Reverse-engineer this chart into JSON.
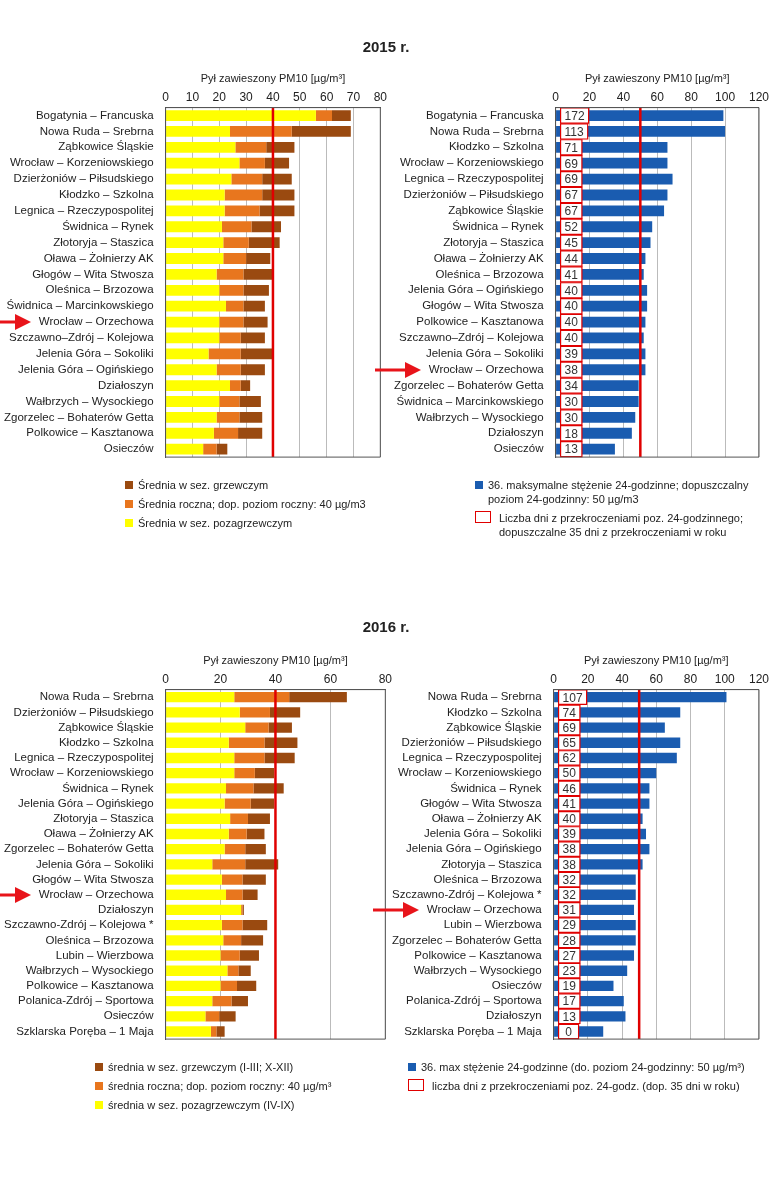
{
  "chart_data": [
    {
      "type": "bar",
      "title": "2015 r.",
      "xlabel": "Pył zawieszony PM10 [µg/m³]",
      "orientation": "horizontal",
      "stacked": true,
      "grid": "x",
      "legend": "bottom",
      "categories": [
        "Bogatynia – Francuska",
        "Nowa Ruda – Srebrna",
        "Ząbkowice Śląskie",
        "Wrocław – Korzeniowskiego",
        "Dzierżoniów – Piłsudskiego",
        "Kłodzko – Szkolna",
        "Legnica – Rzeczypospolitej",
        "Świdnica – Rynek",
        "Złotoryja – Staszica",
        "Oława – Żołnierzy AK",
        "Głogów – Wita Stwosza",
        "Oleśnica – Brzozowa",
        "Świdnica – Marcinkowskiego",
        "Wrocław – Orzechowa",
        "Szczawno–Zdrój – Kolejowa",
        "Jelenia Góra – Sokoliki",
        "Jelenia Góra – Ogińskiego",
        "Działoszyn",
        "Wałbrzych – Wysockiego",
        "Zgorzelec – Bohaterów Getta",
        "Polkowice – Kasztanowa",
        "Osieczów"
      ],
      "series": [
        {
          "name": "Średnia w sez. pozagrzewczym",
          "color": "#ffff00",
          "values": [
            56,
            24,
            26,
            27.5,
            24.5,
            22,
            22,
            21,
            21.5,
            21.5,
            19,
            20,
            22.5,
            20,
            20,
            16,
            19,
            24,
            20,
            19,
            18,
            14
          ]
        },
        {
          "name": "Średnia roczna; dop. poziom roczny: 40 µg/m3",
          "color": "#e8761e",
          "values": [
            6,
            23,
            11.5,
            9.5,
            11.5,
            14,
            13,
            11,
            9.5,
            8.5,
            10,
            9,
            6.5,
            9,
            8,
            12,
            9,
            4,
            7.5,
            8.5,
            9,
            5
          ]
        },
        {
          "name": "Średnia w sez. grzewczym",
          "color": "#9a4a10",
          "values": [
            7,
            22,
            10.5,
            9,
            11,
            12,
            13,
            11,
            11.5,
            9,
            11,
            9.5,
            8,
            9,
            9,
            12,
            9,
            3.5,
            8,
            8.5,
            9,
            4
          ]
        }
      ],
      "xlim": [
        0,
        80
      ],
      "xticks": [
        0,
        10,
        20,
        30,
        40,
        50,
        60,
        70,
        80
      ],
      "ref_lines": [
        {
          "axis": "x",
          "value": 40,
          "color": "#e00000"
        }
      ]
    },
    {
      "type": "bar",
      "xlabel": "Pył zawieszony PM10 [µg/m³]",
      "orientation": "horizontal",
      "grid": "x",
      "legend": "bottom",
      "categories": [
        "Bogatynia – Francuska",
        "Nowa Ruda – Srebrna",
        "Kłodzko – Szkolna",
        "Wrocław – Korzeniowskiego",
        "Legnica – Rzeczypospolitej",
        "Dzierżoniów – Piłsudskiego",
        "Ząbkowice Śląskie",
        "Świdnica – Rynek",
        "Złotoryja – Staszica",
        "Oława – Żołnierzy AK",
        "Oleśnica – Brzozowa",
        "Jelenia Góra – Ogińskiego",
        "Głogów – Wita Stwosza",
        "Polkowice – Kasztanowa",
        "Szczawno–Zdrój – Kolejowa",
        "Jelenia Góra – Sokoliki",
        "Wrocław – Orzechowa",
        "Zgorzelec – Bohaterów Getta",
        "Świdnica – Marcinkowskiego",
        "Wałbrzych – Wysockiego",
        "Działoszyn",
        "Osieczów"
      ],
      "series": [
        {
          "name": "36. maksymalne stężenie 24-godzinne; dopuszczalny poziom 24-godzinny: 50 µg/m3",
          "color": "#1a5cb0",
          "values": [
            99,
            100,
            66,
            66,
            69,
            66,
            64,
            57,
            56,
            53,
            52,
            54,
            54,
            53,
            52,
            53,
            53,
            49,
            49,
            47,
            45,
            35
          ]
        }
      ],
      "xlim": [
        0,
        120
      ],
      "xticks": [
        0,
        20,
        40,
        60,
        80,
        100,
        120
      ],
      "ref_lines": [
        {
          "axis": "x",
          "value": 50,
          "color": "#e00000"
        }
      ],
      "annotations": [
        {
          "text": "172",
          "y": "Bogatynia – Francuska"
        },
        {
          "text": "113",
          "y": "Nowa Ruda – Srebrna"
        },
        {
          "text": "71",
          "y": "Kłodzko – Szkolna"
        },
        {
          "text": "69",
          "y": "Wrocław – Korzeniowskiego"
        },
        {
          "text": "69",
          "y": "Legnica – Rzeczypospolitej"
        },
        {
          "text": "67",
          "y": "Dzierżoniów – Piłsudskiego"
        },
        {
          "text": "67",
          "y": "Ząbkowice Śląskie"
        },
        {
          "text": "52",
          "y": "Świdnica – Rynek"
        },
        {
          "text": "45",
          "y": "Złotoryja – Staszica"
        },
        {
          "text": "44",
          "y": "Oława – Żołnierzy AK"
        },
        {
          "text": "41",
          "y": "Oleśnica – Brzozowa"
        },
        {
          "text": "40",
          "y": "Jelenia Góra – Ogińskiego"
        },
        {
          "text": "40",
          "y": "Głogów – Wita Stwosza"
        },
        {
          "text": "40",
          "y": "Polkowice – Kasztanowa"
        },
        {
          "text": "40",
          "y": "Szczawno–Zdrój – Kolejowa"
        },
        {
          "text": "39",
          "y": "Jelenia Góra – Sokoliki"
        },
        {
          "text": "38",
          "y": "Wrocław – Orzechowa"
        },
        {
          "text": "34",
          "y": "Zgorzelec – Bohaterów Getta"
        },
        {
          "text": "30",
          "y": "Świdnica – Marcinkowskiego"
        },
        {
          "text": "30",
          "y": "Wałbrzych – Wysockiego"
        },
        {
          "text": "18",
          "y": "Działoszyn"
        },
        {
          "text": "13",
          "y": "Osieczów"
        },
        "Liczba dni z przekroczeniami poz. 24-godzinnego; dopuszczalne 35 dni z przekroczeniami w roku"
      ]
    },
    {
      "type": "bar",
      "title": "2016 r.",
      "xlabel": "Pył zawieszony PM10 [µg/m³]",
      "orientation": "horizontal",
      "stacked": true,
      "grid": "x",
      "legend": "bottom",
      "categories": [
        "Nowa Ruda – Srebrna",
        "Dzierżoniów – Piłsudskiego",
        "Ząbkowice Śląskie",
        "Kłodzko – Szkolna",
        "Legnica – Rzeczypospolitej",
        "Wrocław – Korzeniowskiego",
        "Świdnica – Rynek",
        "Jelenia Góra – Ogińskiego",
        "Złotoryja – Staszica",
        "Oława – Żołnierzy AK",
        "Zgorzelec – Bohaterów Getta",
        "Jelenia Góra – Sokoliki",
        "Głogów – Wita Stwosza",
        "Wrocław – Orzechowa",
        "Działoszyn",
        "Szczawno-Zdrój – Kolejowa *",
        "Oleśnica – Brzozowa",
        "Lubin – Wierzbowa",
        "Wałbrzych – Wysockiego",
        "Polkowice – Kasztanowa",
        "Polanica-Zdrój – Sportowa",
        "Osieczów",
        "Szklarska Poręba – 1 Maja"
      ],
      "series": [
        {
          "name": "średnia w sez. pozagrzewczym (IV-IX)",
          "color": "#ffff00",
          "values": [
            25,
            27,
            29,
            23,
            25,
            25,
            22,
            21.5,
            23.5,
            23,
            21.5,
            17,
            20.5,
            22,
            27.5,
            20.5,
            21,
            20,
            22.5,
            20,
            17,
            14.5,
            16.5
          ]
        },
        {
          "name": "średnia roczna; dop. poziom roczny: 40 µg/m³",
          "color": "#e8761e",
          "values": [
            20,
            11,
            8.5,
            13,
            11,
            7.5,
            10,
            9.5,
            6.5,
            6.5,
            7.5,
            12,
            7.5,
            6,
            0.5,
            7.5,
            6.5,
            7,
            4,
            6,
            7,
            5,
            2
          ]
        },
        {
          "name": "średnia w sez. grzewczym (I-III; X-XII)",
          "color": "#9a4a10",
          "values": [
            21,
            11,
            8.5,
            12,
            11,
            7,
            11,
            8.5,
            8,
            6.5,
            7.5,
            12,
            8.5,
            5.5,
            0.5,
            9,
            8,
            7,
            4.5,
            7,
            6,
            6,
            3
          ]
        }
      ],
      "xlim": [
        0,
        80
      ],
      "xticks": [
        0,
        20,
        40,
        60,
        80
      ],
      "ref_lines": [
        {
          "axis": "x",
          "value": 40,
          "color": "#e00000"
        }
      ]
    },
    {
      "type": "bar",
      "xlabel": "Pył zawieszony PM10 [µg/m³]",
      "orientation": "horizontal",
      "grid": "x",
      "legend": "bottom",
      "categories": [
        "Nowa Ruda – Srebrna",
        "Kłodzko – Szkolna",
        "Ząbkowice Śląskie",
        "Dzierżoniów – Piłsudskiego",
        "Legnica – Rzeczypospolitej",
        "Wrocław – Korzeniowskiego",
        "Świdnica – Rynek",
        "Głogów – Wita Stwosza",
        "Oława – Żołnierzy AK",
        "Jelenia Góra – Sokoliki",
        "Jelenia Góra – Ogińskiego",
        "Złotoryja – Staszica",
        "Oleśnica – Brzozowa",
        "Szczawno-Zdrój – Kolejowa *",
        "Wrocław – Orzechowa",
        "Lubin – Wierzbowa",
        "Zgorzelec – Bohaterów Getta",
        "Polkowice – Kasztanowa",
        "Wałbrzych – Wysockiego",
        "Osieczów",
        "Polanica-Zdrój – Sportowa",
        "Działoszyn",
        "Szklarska Poręba – 1 Maja"
      ],
      "series": [
        {
          "name": "36. max stężenie 24-godzinne (do. poziom 24-godzinny: 50 µg/m³)",
          "color": "#1a5cb0",
          "values": [
            101,
            74,
            65,
            74,
            72,
            60,
            56,
            56,
            52,
            54,
            56,
            52,
            48,
            48,
            47,
            48,
            48,
            47,
            43,
            35,
            41,
            42,
            29
          ]
        }
      ],
      "xlim": [
        0,
        120
      ],
      "xticks": [
        0,
        20,
        40,
        60,
        80,
        100,
        120
      ],
      "ref_lines": [
        {
          "axis": "x",
          "value": 50,
          "color": "#e00000"
        }
      ],
      "annotations": [
        {
          "text": "107",
          "y": "Nowa Ruda – Srebrna"
        },
        {
          "text": "74",
          "y": "Kłodzko – Szkolna"
        },
        {
          "text": "69",
          "y": "Ząbkowice Śląskie"
        },
        {
          "text": "65",
          "y": "Dzierżoniów – Piłsudskiego"
        },
        {
          "text": "62",
          "y": "Legnica – Rzeczypospolitej"
        },
        {
          "text": "50",
          "y": "Wrocław – Korzeniowskiego"
        },
        {
          "text": "46",
          "y": "Świdnica – Rynek"
        },
        {
          "text": "41",
          "y": "Głogów – Wita Stwosza"
        },
        {
          "text": "40",
          "y": "Oława – Żołnierzy AK"
        },
        {
          "text": "39",
          "y": "Jelenia Góra – Sokoliki"
        },
        {
          "text": "38",
          "y": "Jelenia Góra – Ogińskiego"
        },
        {
          "text": "38",
          "y": "Złotoryja – Staszica"
        },
        {
          "text": "32",
          "y": "Oleśnica – Brzozowa"
        },
        {
          "text": "32",
          "y": "Szczawno-Zdrój – Kolejowa *"
        },
        {
          "text": "31",
          "y": "Wrocław – Orzechowa"
        },
        {
          "text": "29",
          "y": "Lubin – Wierzbowa"
        },
        {
          "text": "28",
          "y": "Zgorzelec – Bohaterów Getta"
        },
        {
          "text": "27",
          "y": "Polkowice – Kasztanowa"
        },
        {
          "text": "23",
          "y": "Wałbrzych – Wysockiego"
        },
        {
          "text": "19",
          "y": "Osieczów"
        },
        {
          "text": "17",
          "y": "Polanica-Zdrój – Sportowa"
        },
        {
          "text": "13",
          "y": "Działoszyn"
        },
        {
          "text": "0",
          "y": "Szklarska Poręba – 1 Maja"
        },
        "liczba dni z przekroczeniami poz. 24-godz. (dop. 35 dni w roku)"
      ]
    }
  ]
}
